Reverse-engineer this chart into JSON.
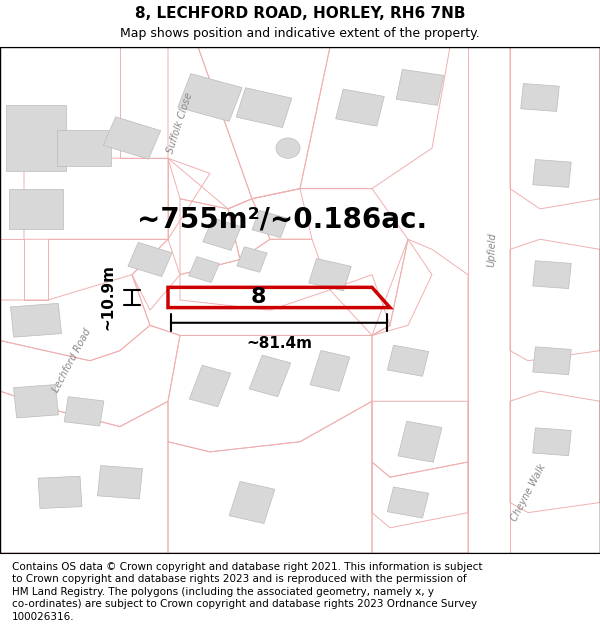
{
  "title": "8, LECHFORD ROAD, HORLEY, RH6 7NB",
  "subtitle": "Map shows position and indicative extent of the property.",
  "area_label": "~755m²/~0.186ac.",
  "width_label": "~81.4m",
  "height_label": "~10.9m",
  "number_label": "8",
  "bg_color": "#ffffff",
  "highlight_color": "#cc0000",
  "building_fill": "#d8d8d8",
  "building_edge": "#bbbbbb",
  "road_outline_color": "#f0b0b0",
  "road_fill_color": "#fce8e8",
  "title_fontsize": 11,
  "subtitle_fontsize": 9,
  "footer_fontsize": 7.5,
  "area_fontsize": 20,
  "dim_fontsize": 11,
  "num_fontsize": 16,
  "footer_lines": [
    "Contains OS data © Crown copyright and database right 2021. This information is subject",
    "to Crown copyright and database rights 2023 and is reproduced with the permission of",
    "HM Land Registry. The polygons (including the associated geometry, namely x, y",
    "co-ordinates) are subject to Crown copyright and database rights 2023 Ordnance Survey",
    "100026316."
  ],
  "road_label_color": "#888888",
  "road_label_fontsize": 7
}
